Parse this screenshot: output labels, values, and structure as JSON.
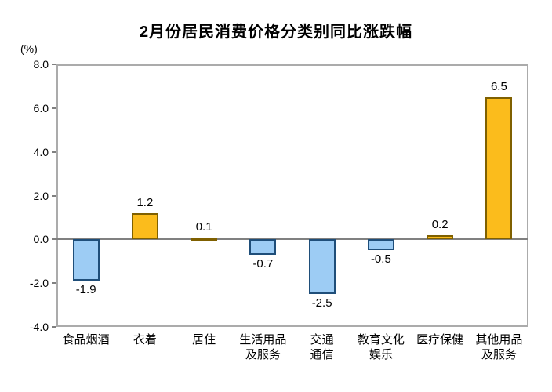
{
  "chart_data": {
    "type": "bar",
    "title": "2月份居民消费价格分类别同比涨跌幅",
    "unit_label": "(%)",
    "categories": [
      [
        "食品烟酒"
      ],
      [
        "衣着"
      ],
      [
        "居住"
      ],
      [
        "生活用品",
        "及服务"
      ],
      [
        "交通",
        "通信"
      ],
      [
        "教育文化",
        "娱乐"
      ],
      [
        "医疗保健"
      ],
      [
        "其他用品",
        "及服务"
      ]
    ],
    "values": [
      -1.9,
      1.2,
      0.1,
      -0.7,
      -2.5,
      -0.5,
      0.2,
      6.5
    ],
    "value_labels": [
      "-1.9",
      "1.2",
      "0.1",
      "-0.7",
      "-2.5",
      "-0.5",
      "0.2",
      "6.5"
    ],
    "xlabel": "",
    "ylabel": "(%)",
    "ylim": [
      -4.0,
      8.0
    ],
    "ytick_step": 2.0,
    "ytick_labels": [
      "8.0",
      "6.0",
      "4.0",
      "2.0",
      "0.0",
      "-2.0",
      "-4.0"
    ],
    "grid": "off",
    "legend": "none",
    "colors": {
      "positive_fill": "#fbbc1c",
      "positive_border": "#7f6000",
      "negative_fill": "#9dccf4",
      "negative_border": "#1f4e79",
      "plot_border": "#ababab",
      "zero_line": "#808080",
      "text": "#000000"
    }
  }
}
